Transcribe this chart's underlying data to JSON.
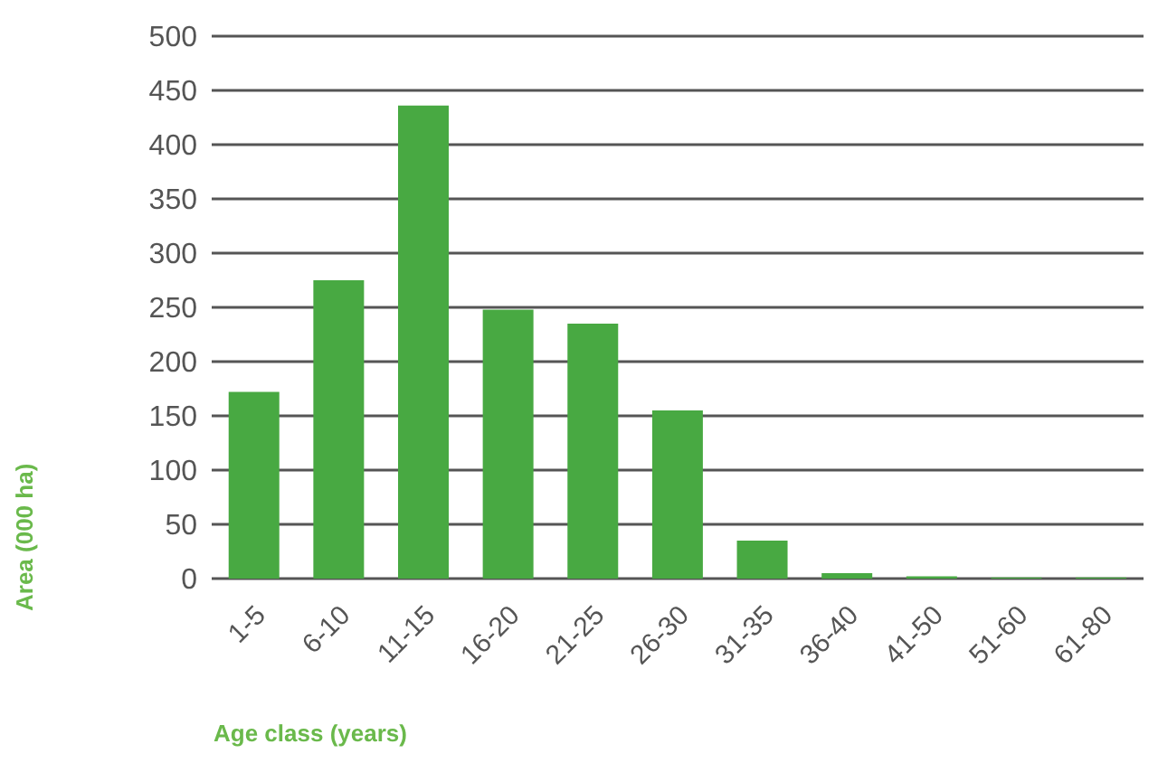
{
  "chart_data": {
    "type": "bar",
    "xlabel": "Age class (years)",
    "ylabel": "Area (000 ha)",
    "categories": [
      "1-5",
      "6-10",
      "11-15",
      "16-20",
      "21-25",
      "26-30",
      "31-35",
      "36-40",
      "41-50",
      "51-60",
      "61-80"
    ],
    "values": [
      172,
      275,
      436,
      248,
      235,
      155,
      35,
      5,
      2,
      1,
      1
    ],
    "color": "#48a942",
    "ylim": [
      0,
      500
    ],
    "yticks": [
      0,
      50,
      100,
      150,
      200,
      250,
      300,
      350,
      400,
      450,
      500
    ],
    "grid": "y"
  }
}
